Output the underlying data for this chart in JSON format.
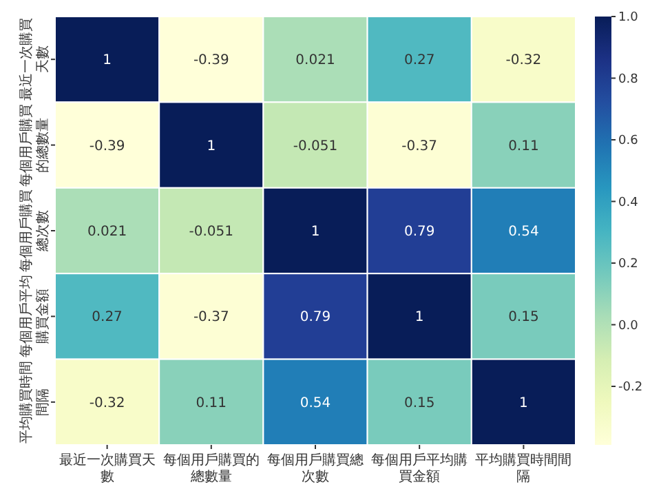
{
  "chart_data": {
    "type": "heatmap",
    "categories": [
      "最近一次購買天數",
      "每個用戶購買的總數量",
      "每個用戶購買總次數",
      "每個用戶平均購買金額",
      "平均購買時間間隔"
    ],
    "y_categories": [
      "最近一次購買天數",
      "每個用戶購買的總數量",
      "每個用戶購買總次數",
      "每個用戶平均購買金額",
      "平均購買時間間隔"
    ],
    "cells": [
      [
        1,
        -0.39,
        0.021,
        0.27,
        -0.32
      ],
      [
        -0.39,
        1,
        -0.051,
        -0.37,
        0.11
      ],
      [
        0.021,
        -0.051,
        1,
        0.79,
        0.54
      ],
      [
        0.27,
        -0.37,
        0.79,
        1,
        0.15
      ],
      [
        -0.32,
        0.11,
        0.54,
        0.15,
        1
      ]
    ],
    "data_labels": true,
    "clim": [
      -0.39,
      1
    ],
    "cticks": [
      {
        "value": -0.2,
        "label": "-0.2"
      },
      {
        "value": 0,
        "label": "0.0"
      },
      {
        "value": 0.2,
        "label": "0.2"
      },
      {
        "value": 0.4,
        "label": "0.4"
      },
      {
        "value": 0.6,
        "label": "0.6"
      },
      {
        "value": 0.8,
        "label": "0.8"
      },
      {
        "value": 1,
        "label": "1.0"
      }
    ]
  }
}
